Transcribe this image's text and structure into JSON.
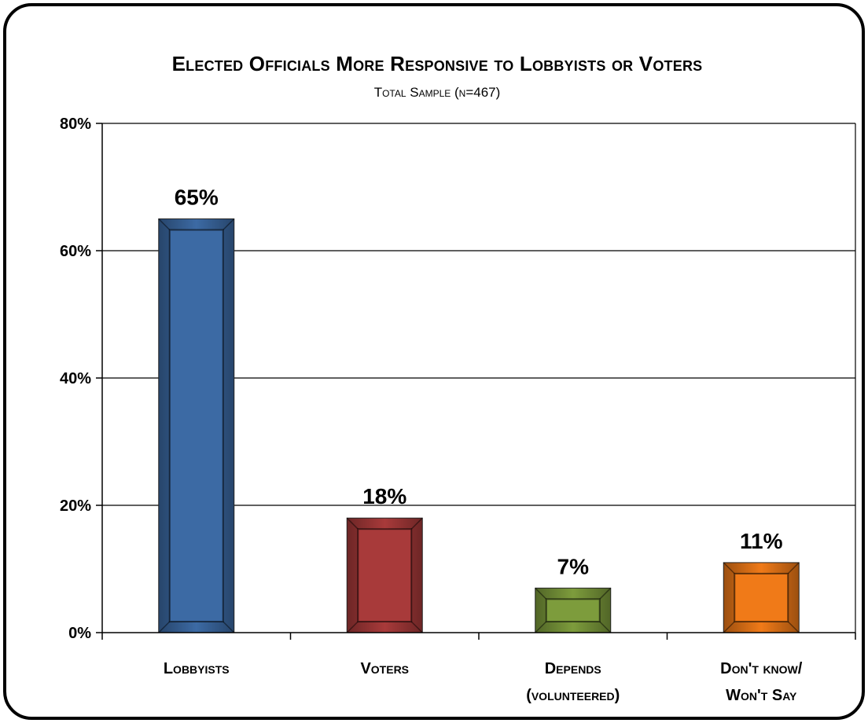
{
  "chart_data": {
    "type": "bar",
    "title": "Elected Officials More Responsive to Lobbyists or Voters",
    "subtitle": "Total Sample (n=467)",
    "categories": [
      [
        "Lobbyists"
      ],
      [
        "Voters"
      ],
      [
        "Depends",
        "(volunteered)"
      ],
      [
        "Don't know/",
        "Won't Say"
      ]
    ],
    "values": [
      65,
      18,
      7,
      11
    ],
    "value_labels": [
      "65%",
      "18%",
      "7%",
      "11%"
    ],
    "colors": [
      "#3c6aa4",
      "#a83a3a",
      "#7d9c3c",
      "#f07a18"
    ],
    "ylim": [
      0,
      80
    ],
    "yticks": [
      0,
      20,
      40,
      60,
      80
    ],
    "ytick_labels": [
      "0%",
      "20%",
      "40%",
      "60%",
      "80%"
    ],
    "grid": true,
    "legend": "none",
    "xlabel": "",
    "ylabel": ""
  }
}
